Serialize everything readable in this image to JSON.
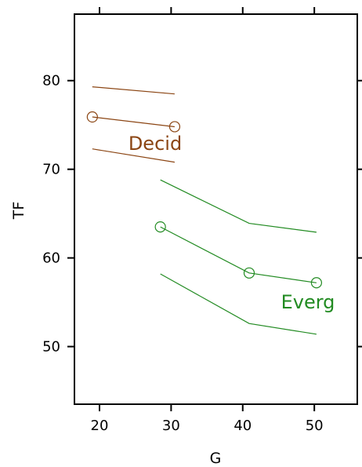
{
  "chart_data": {
    "type": "line",
    "title": "",
    "xlabel": "G",
    "ylabel": "TF",
    "xlim": [
      16.5,
      56
    ],
    "ylim": [
      43.5,
      87.5
    ],
    "xticks": [
      20,
      30,
      40,
      50
    ],
    "yticks": [
      50,
      60,
      70,
      80
    ],
    "grid": false,
    "legend": "none",
    "series": [
      {
        "name": "Decid",
        "color": "#8B4513",
        "x": [
          19,
          30.5
        ],
        "y": [
          75.9,
          74.8
        ],
        "upper": [
          79.3,
          78.5
        ],
        "lower": [
          72.3,
          70.8
        ]
      },
      {
        "name": "Everg",
        "color": "#228B22",
        "x": [
          28.5,
          40.9,
          50.3
        ],
        "y": [
          63.5,
          58.3,
          57.2
        ],
        "upper": [
          68.8,
          63.9,
          62.9
        ],
        "lower": [
          58.2,
          52.6,
          51.4
        ]
      }
    ]
  }
}
